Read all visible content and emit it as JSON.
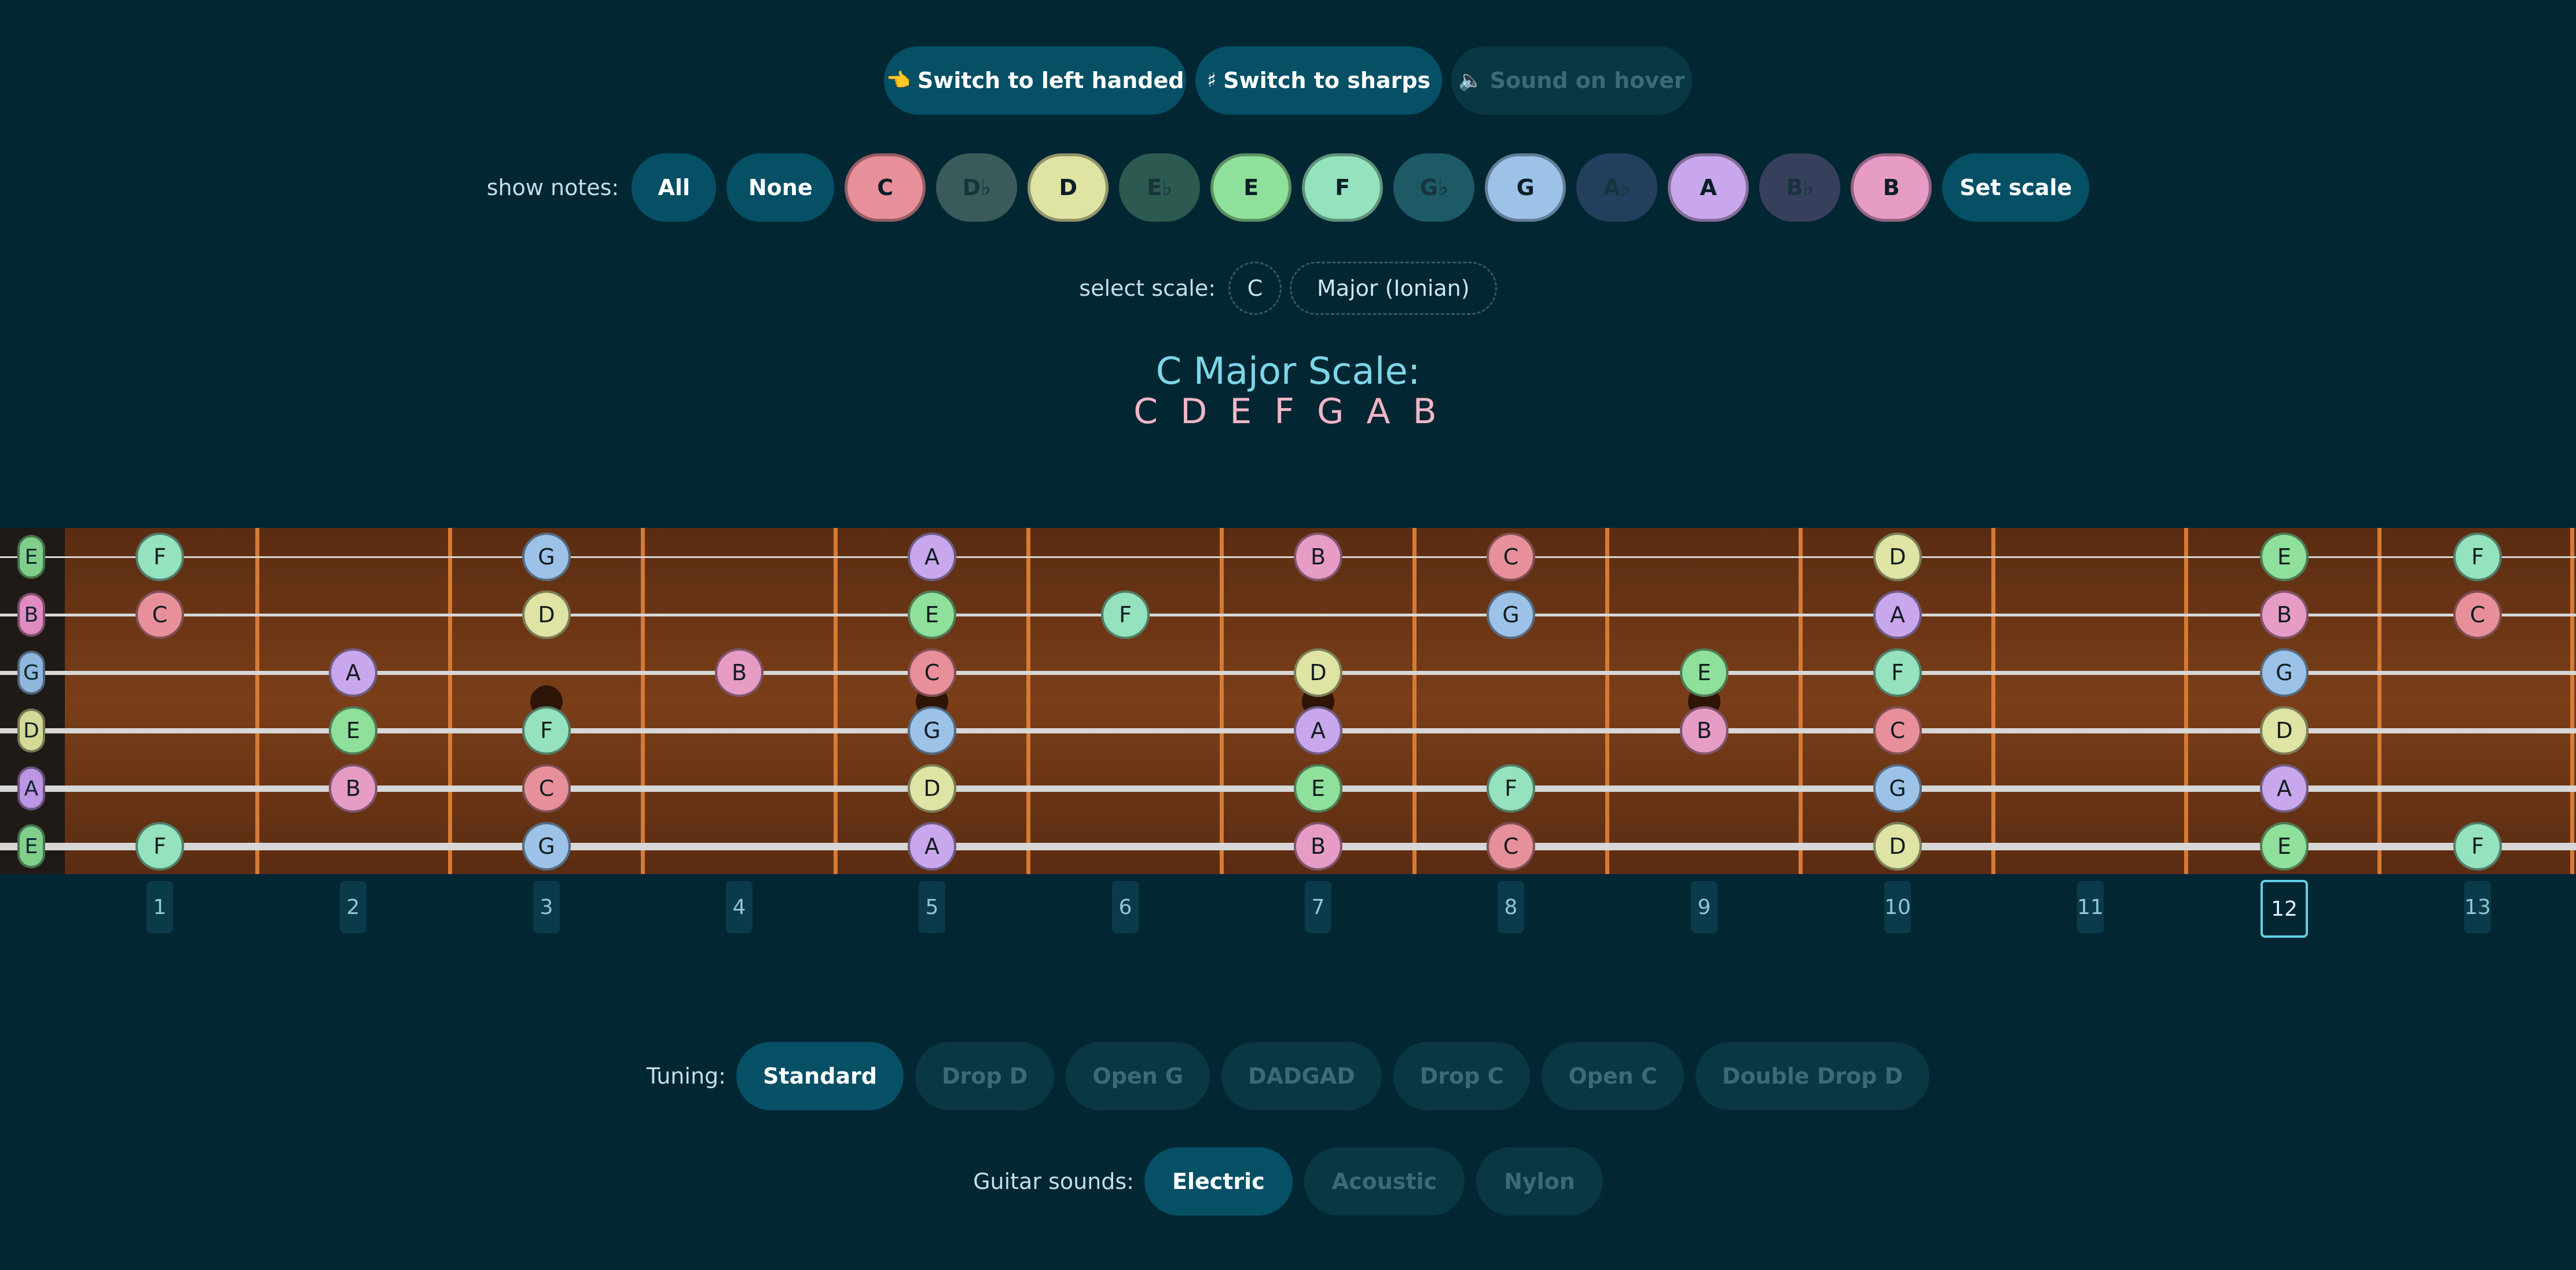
{
  "toolbar": {
    "left_handed": {
      "icon": "👈",
      "label": "Switch to left handed"
    },
    "sharps": {
      "icon": "♯",
      "label": "Switch to sharps"
    },
    "sound_hover": {
      "icon": "🔈",
      "label": "Sound on hover"
    }
  },
  "show_notes": {
    "label": "show notes:",
    "all": "All",
    "none": "None",
    "set_scale": "Set scale",
    "notes": [
      {
        "name": "C",
        "color": "#e8909a",
        "active": true
      },
      {
        "name": "D♭",
        "color": "#3b5a5a",
        "active": false
      },
      {
        "name": "D",
        "color": "#dfe3a3",
        "active": true
      },
      {
        "name": "E♭",
        "color": "#2c5a50",
        "active": false
      },
      {
        "name": "E",
        "color": "#8fe09a",
        "active": true
      },
      {
        "name": "F",
        "color": "#95e2be",
        "active": true
      },
      {
        "name": "G♭",
        "color": "#1d5a66",
        "active": false
      },
      {
        "name": "G",
        "color": "#9cc2e8",
        "active": true
      },
      {
        "name": "A♭",
        "color": "#243f5d",
        "active": false
      },
      {
        "name": "A",
        "color": "#c9a7ec",
        "active": true
      },
      {
        "name": "B♭",
        "color": "#36405c",
        "active": false
      },
      {
        "name": "B",
        "color": "#e79cc6",
        "active": true
      }
    ]
  },
  "select_scale": {
    "label": "select scale:",
    "key": "C",
    "mode": "Major (Ionian)"
  },
  "scale_display": {
    "title": "C Major Scale:",
    "notes": "C D E F G A B"
  },
  "fretboard": {
    "strings": [
      {
        "name": "E",
        "color": "#7fcf8a",
        "notes": [
          "F",
          "",
          "G",
          "",
          "A",
          "",
          "B",
          "C",
          "",
          "D",
          "",
          "E",
          "F"
        ]
      },
      {
        "name": "B",
        "color": "#e08cc0",
        "notes": [
          "C",
          "",
          "D",
          "",
          "E",
          "F",
          "",
          "G",
          "",
          "A",
          "",
          "B",
          "C"
        ]
      },
      {
        "name": "G",
        "color": "#8fb6dc",
        "notes": [
          "",
          "A",
          "",
          "B",
          "C",
          "",
          "D",
          "",
          "E",
          "F",
          "",
          "G",
          ""
        ]
      },
      {
        "name": "D",
        "color": "#d6d996",
        "notes": [
          "",
          "E",
          "F",
          "",
          "G",
          "",
          "A",
          "",
          "B",
          "C",
          "",
          "D",
          ""
        ]
      },
      {
        "name": "A",
        "color": "#bc95e4",
        "notes": [
          "",
          "B",
          "C",
          "",
          "D",
          "",
          "E",
          "F",
          "",
          "G",
          "",
          "A",
          ""
        ]
      },
      {
        "name": "E",
        "color": "#7fcf8a",
        "notes": [
          "F",
          "",
          "G",
          "",
          "A",
          "",
          "B",
          "C",
          "",
          "D",
          "",
          "E",
          "F"
        ]
      }
    ],
    "fret_numbers": [
      "1",
      "2",
      "3",
      "4",
      "5",
      "6",
      "7",
      "8",
      "9",
      "10",
      "11",
      "12",
      "13"
    ],
    "current_fret": "12"
  },
  "tuning": {
    "label": "Tuning:",
    "options": [
      "Standard",
      "Drop D",
      "Open G",
      "DADGAD",
      "Drop C",
      "Open C",
      "Double Drop D"
    ],
    "selected": "Standard"
  },
  "guitar_sounds": {
    "label": "Guitar sounds:",
    "options": [
      "Electric",
      "Acoustic",
      "Nylon"
    ],
    "selected": "Electric"
  }
}
